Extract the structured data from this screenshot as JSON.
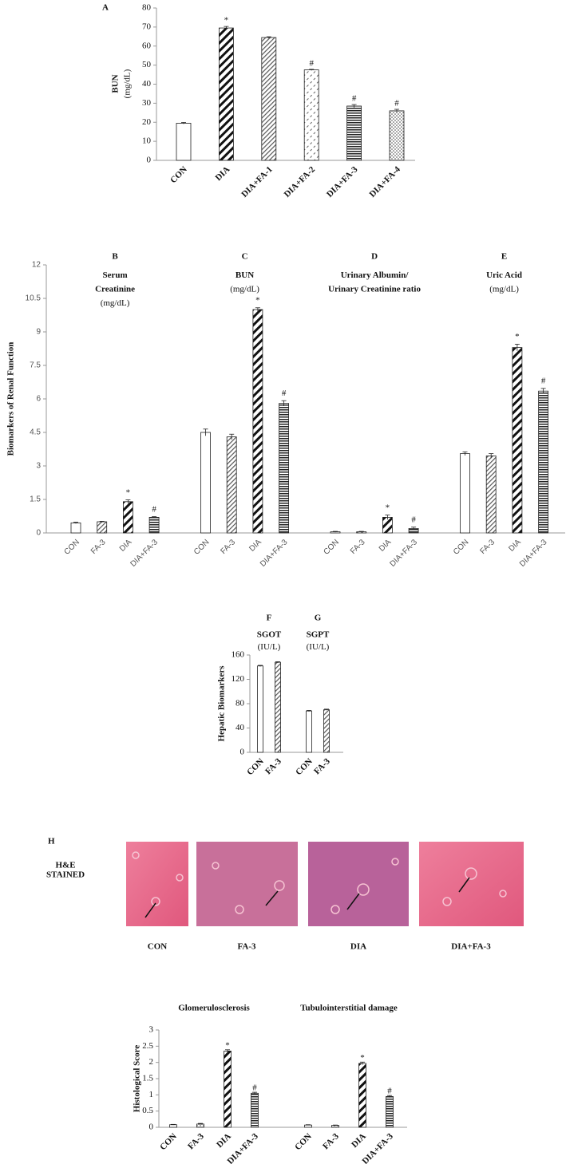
{
  "chart_data": [
    {
      "type": "bar",
      "panel": "A",
      "ytitle": [
        "BUN",
        "(mg/dL)"
      ],
      "categories": [
        "CON",
        "DIA",
        "DIA+FA-1",
        "DIA+FA-2",
        "DIA+FA-3",
        "DIA+FA-4"
      ],
      "values": [
        19.5,
        69.5,
        64.5,
        47.5,
        28.5,
        26
      ],
      "errors": [
        0.4,
        0.8,
        0.4,
        0.3,
        0.8,
        0.8
      ],
      "annotations": [
        null,
        "*",
        null,
        "#",
        "#",
        "#"
      ],
      "patterns": [
        "plain",
        "diag-bold",
        "diag",
        "dash",
        "hlines",
        "dots"
      ],
      "ylim": [
        0,
        80
      ],
      "yticks": [
        0,
        10,
        20,
        30,
        40,
        50,
        60,
        70,
        80
      ]
    },
    {
      "type": "grouped_bar",
      "ytitle": [
        "Biomarkers of Renal Function"
      ],
      "ylim": [
        0,
        12
      ],
      "yticks": [
        0,
        1.5,
        3,
        4.5,
        6,
        7.5,
        9,
        10.5,
        12
      ],
      "categories": [
        "CON",
        "FA-3",
        "DIA",
        "DIA+FA-3"
      ],
      "patterns": [
        "plain",
        "diag",
        "diag-bold",
        "hlines"
      ],
      "groups": [
        {
          "panel": "B",
          "title": [
            "Serum",
            "Creatinine"
          ],
          "unit": "(mg/dL)",
          "values": [
            0.45,
            0.5,
            1.4,
            0.7
          ],
          "errors": [
            0.03,
            0.02,
            0.08,
            0.03
          ],
          "annotations": [
            null,
            null,
            "*",
            "#"
          ]
        },
        {
          "panel": "C",
          "title": [
            "BUN"
          ],
          "unit": "(mg/dL)",
          "values": [
            4.5,
            4.3,
            10.0,
            5.8
          ],
          "errors": [
            0.15,
            0.12,
            0.08,
            0.12
          ],
          "annotations": [
            null,
            null,
            "*",
            "#"
          ]
        },
        {
          "panel": "D",
          "title": [
            "Urinary Albumin/",
            "Urinary Creatinine ratio"
          ],
          "values": [
            0.05,
            0.05,
            0.7,
            0.2
          ],
          "errors": [
            0.02,
            0.02,
            0.1,
            0.06
          ],
          "annotations": [
            null,
            null,
            "*",
            "#"
          ]
        },
        {
          "panel": "E",
          "title": [
            "Uric Acid"
          ],
          "unit": "(mg/dL)",
          "values": [
            3.55,
            3.45,
            8.3,
            6.35
          ],
          "errors": [
            0.08,
            0.1,
            0.15,
            0.12
          ],
          "annotations": [
            null,
            null,
            "*",
            "#"
          ]
        }
      ]
    },
    {
      "type": "grouped_bar",
      "ytitle": [
        "Hepatic Biomarkers"
      ],
      "ylim": [
        0,
        160
      ],
      "yticks": [
        0,
        40,
        80,
        120,
        160
      ],
      "categories": [
        "CON",
        "FA-3"
      ],
      "patterns": [
        "plain",
        "diag"
      ],
      "groups": [
        {
          "panel": "F",
          "title": [
            "SGOT"
          ],
          "unit": "(IU/L)",
          "values": [
            142,
            148
          ],
          "errors": [
            1,
            1
          ],
          "annotations": [
            null,
            null
          ]
        },
        {
          "panel": "G",
          "title": [
            "SGPT"
          ],
          "unit": "(IU/L)",
          "values": [
            68,
            70
          ],
          "errors": [
            1,
            1
          ],
          "annotations": [
            null,
            null
          ]
        }
      ]
    },
    {
      "type": "grouped_bar",
      "ytitle": [
        "Histological Score"
      ],
      "ylim": [
        0,
        3
      ],
      "yticks": [
        0,
        0.5,
        1,
        1.5,
        2,
        2.5,
        3
      ],
      "categories": [
        "CON",
        "FA-3",
        "DIA",
        "DIA+FA-3"
      ],
      "patterns": [
        "plain",
        "dots",
        "diag-bold",
        "hlines"
      ],
      "groups": [
        {
          "title": [
            "Glomerulosclerosis"
          ],
          "values": [
            0.08,
            0.1,
            2.35,
            1.05
          ],
          "errors": [
            0.01,
            0.02,
            0.04,
            0.03
          ],
          "annotations": [
            null,
            null,
            "*",
            "#"
          ]
        },
        {
          "title": [
            "Tubulointerstitial damage"
          ],
          "values": [
            0.07,
            0.06,
            1.97,
            0.95
          ],
          "errors": [
            0.01,
            0.01,
            0.04,
            0.03
          ],
          "annotations": [
            null,
            null,
            "*",
            "#"
          ]
        }
      ]
    }
  ],
  "histology": {
    "panel": "H",
    "stain_label": [
      "H&E",
      "STAINED"
    ],
    "captions": [
      "CON",
      "FA-3",
      "DIA",
      "DIA+FA-3"
    ]
  }
}
